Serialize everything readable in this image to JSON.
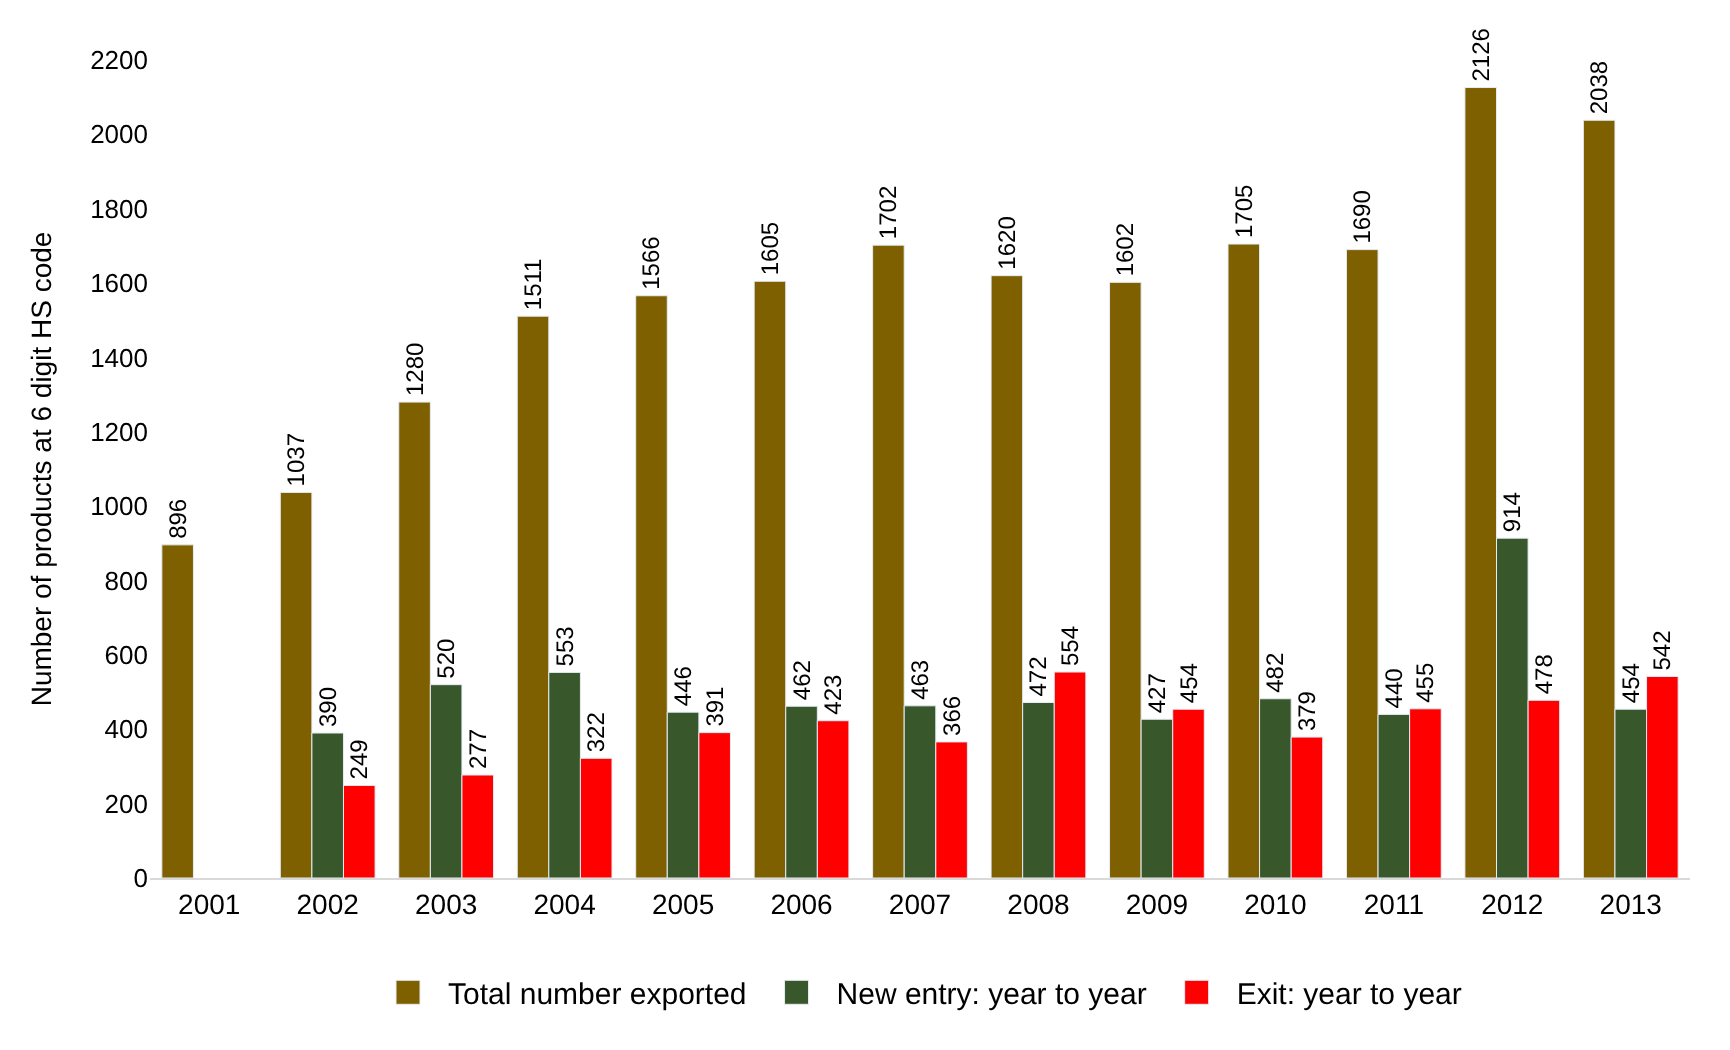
{
  "chart_data": {
    "type": "bar",
    "ylabel": "Number of products at 6 digit HS code",
    "categories": [
      "2001",
      "2002",
      "2003",
      "2004",
      "2005",
      "2006",
      "2007",
      "2008",
      "2009",
      "2010",
      "2011",
      "2012",
      "2013"
    ],
    "series": [
      {
        "name": "Total number exported",
        "color": "#7f6000",
        "values": [
          896,
          1037,
          1280,
          1511,
          1566,
          1605,
          1702,
          1620,
          1602,
          1705,
          1690,
          2126,
          2038
        ]
      },
      {
        "name": "New entry: year to year",
        "color": "#38572a",
        "values": [
          null,
          390,
          520,
          553,
          446,
          462,
          463,
          472,
          427,
          482,
          440,
          914,
          454
        ]
      },
      {
        "name": "Exit: year to year",
        "color": "#ff0000",
        "values": [
          null,
          249,
          277,
          322,
          391,
          423,
          366,
          554,
          454,
          379,
          455,
          478,
          542
        ]
      }
    ],
    "ylim": [
      0,
      2200
    ],
    "yticks": [
      0,
      200,
      400,
      600,
      800,
      1000,
      1200,
      1400,
      1600,
      1800,
      2000,
      2200
    ],
    "grid": false,
    "legend": "bottom",
    "data_labels": true
  }
}
